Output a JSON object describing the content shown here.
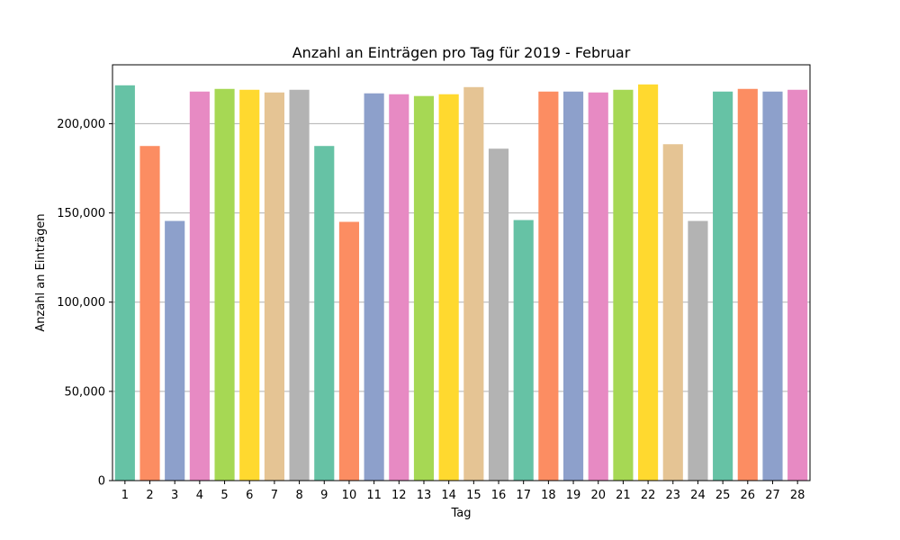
{
  "chart_data": {
    "type": "bar",
    "title": "Anzahl an Einträgen pro Tag für 2019 - Februar",
    "xlabel": "Tag",
    "ylabel": "Anzahl an Einträgen",
    "categories": [
      "1",
      "2",
      "3",
      "4",
      "5",
      "6",
      "7",
      "8",
      "9",
      "10",
      "11",
      "12",
      "13",
      "14",
      "15",
      "16",
      "17",
      "18",
      "19",
      "20",
      "21",
      "22",
      "23",
      "24",
      "25",
      "26",
      "27",
      "28"
    ],
    "values": [
      221500,
      187500,
      145500,
      218000,
      219500,
      219000,
      217500,
      219000,
      187500,
      145000,
      217000,
      216500,
      215500,
      216500,
      220500,
      186000,
      146000,
      218000,
      218000,
      217500,
      219000,
      222000,
      188500,
      145500,
      218000,
      219500,
      218000,
      219000
    ],
    "ylim": [
      0,
      233000
    ],
    "yticks": [
      0,
      50000,
      100000,
      150000,
      200000
    ],
    "ytick_labels": [
      "0",
      "50,000",
      "100,000",
      "150,000",
      "200,000"
    ],
    "grid": "y",
    "colors": [
      "#66c2a5",
      "#fc8d62",
      "#8da0cb",
      "#e78ac3",
      "#a6d854",
      "#ffd92f",
      "#e5c494",
      "#b3b3b3"
    ]
  }
}
